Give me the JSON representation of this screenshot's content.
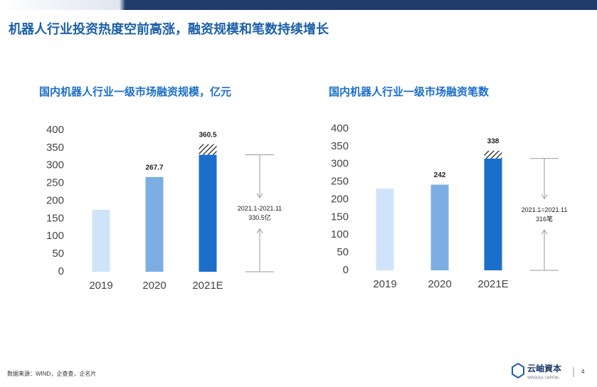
{
  "header": {
    "title": "机器人行业投资热度空前高涨，融资规模和笔数持续增长"
  },
  "chart_data": [
    {
      "type": "bar",
      "title": "国内机器人行业一级市场融资规模，亿元",
      "categories": [
        "2019",
        "2020",
        "2021E"
      ],
      "values": [
        175,
        267.7,
        360.5
      ],
      "value_labels": [
        null,
        "267.7",
        "360.5"
      ],
      "colors": [
        "#cfe4f8",
        "#7caee3",
        "#1b6fca"
      ],
      "ylim": [
        0,
        400
      ],
      "yticks": [
        0,
        50,
        100,
        150,
        200,
        250,
        300,
        350,
        400
      ],
      "annotation": {
        "category": 2,
        "value": 330.5,
        "period": "2021.1-2021.11",
        "label": "330.5亿"
      }
    },
    {
      "type": "bar",
      "title": "国内机器人行业一级市场融资笔数",
      "categories": [
        "2019",
        "2020",
        "2021E"
      ],
      "values": [
        231,
        242,
        338
      ],
      "value_labels": [
        null,
        "242",
        "338"
      ],
      "colors": [
        "#cfe4f8",
        "#7caee3",
        "#1b6fca"
      ],
      "ylim": [
        0,
        400
      ],
      "yticks": [
        0,
        50,
        100,
        150,
        200,
        250,
        300,
        350,
        400
      ],
      "annotation": {
        "category": 2,
        "value": 316,
        "period": "2021.1=2021.11",
        "label": "316笔"
      }
    }
  ],
  "footer": {
    "source": "数据来源：WIND，企查查，企名片",
    "logo": "云岫資本",
    "logo_sub": "WINSOUL CAPITAL",
    "page": "4"
  }
}
